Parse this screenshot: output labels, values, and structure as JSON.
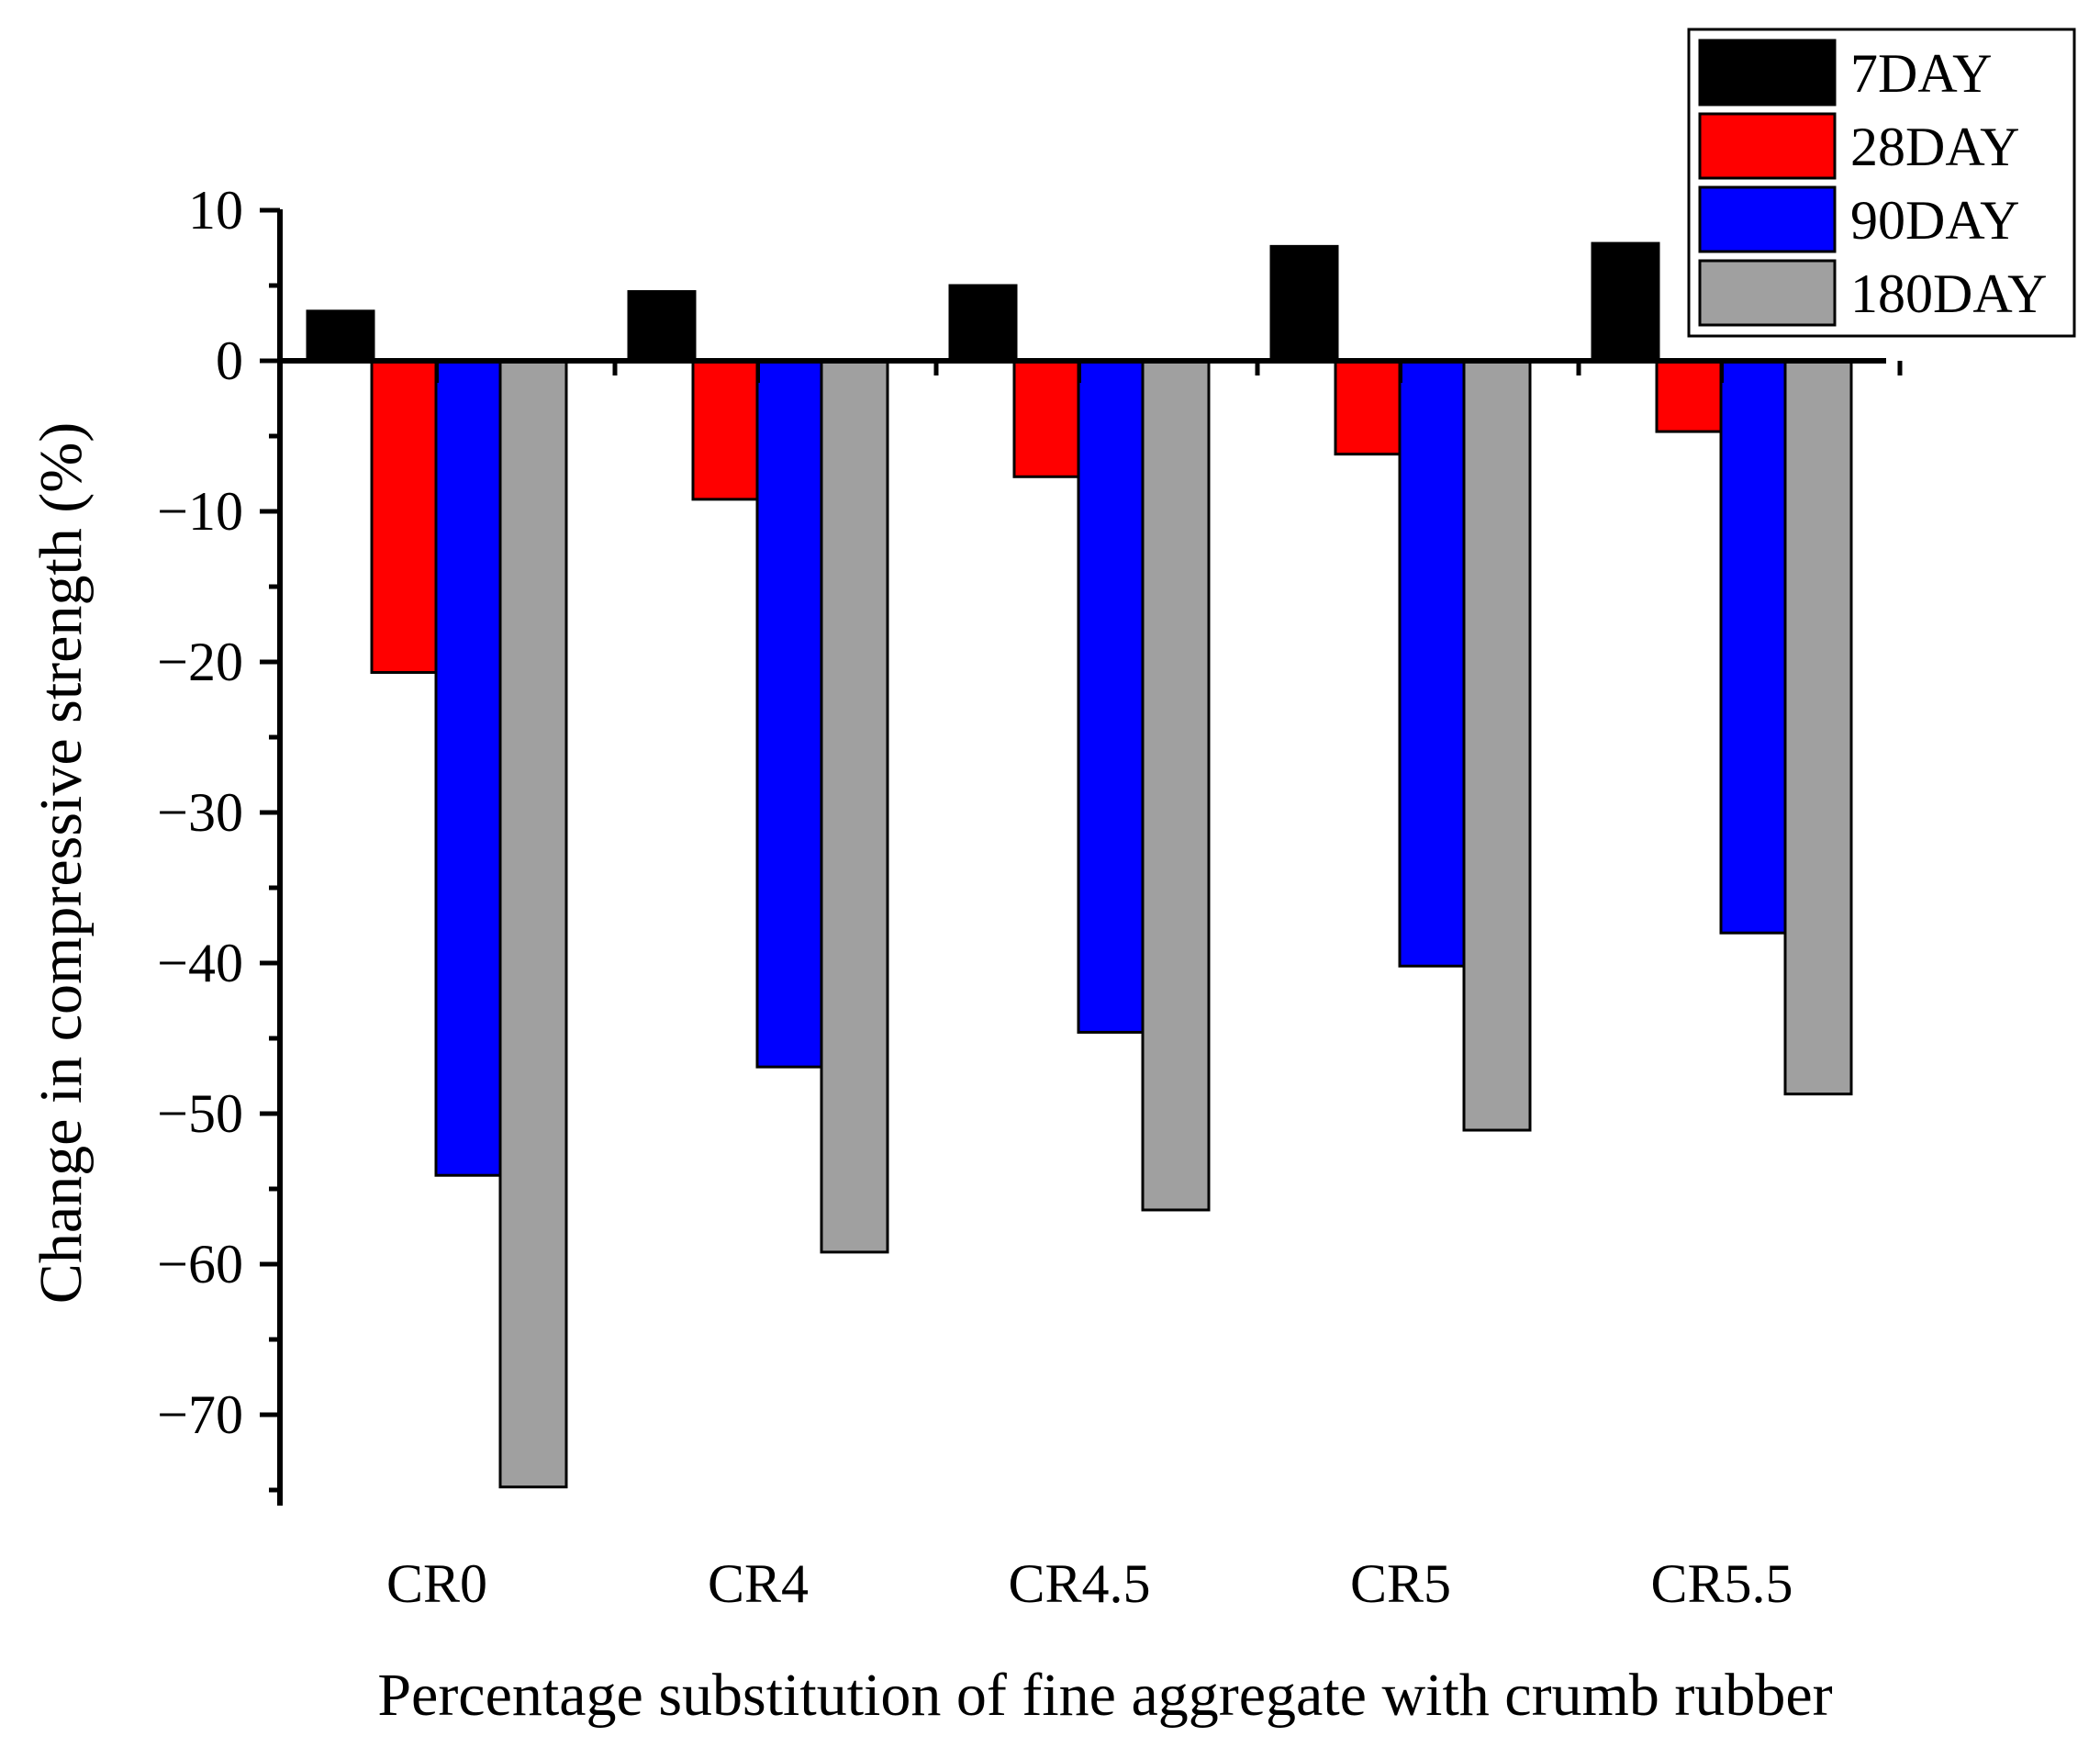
{
  "chart_data": {
    "type": "bar",
    "title": "",
    "xlabel": "Percentage substitution of fine aggregate with crumb rubber",
    "ylabel": "Change in compressive strength (%)",
    "ylim": [
      -76,
      10
    ],
    "y_ticks": [
      10,
      0,
      -10,
      -20,
      -30,
      -40,
      -50,
      -60,
      -70
    ],
    "y_tick_labels": [
      "10",
      "0",
      "−10",
      "−20",
      "−30",
      "−40",
      "−50",
      "−60",
      "−70"
    ],
    "categories": [
      "CR0",
      "CR4",
      "CR4.5",
      "CR5",
      "CR5.5"
    ],
    "series": [
      {
        "name": "7DAY",
        "color": "#000000",
        "values": [
          3.3,
          4.6,
          5.0,
          7.6,
          7.8
        ]
      },
      {
        "name": "28DAY",
        "color": "#ff0000",
        "values": [
          -20.7,
          -9.2,
          -7.7,
          -6.2,
          -4.7
        ]
      },
      {
        "name": "90DAY",
        "color": "#0000ff",
        "values": [
          -54.1,
          -46.9,
          -44.6,
          -40.2,
          -38.0
        ]
      },
      {
        "name": "180DAY",
        "color": "#a0a0a0",
        "values": [
          -74.8,
          -59.2,
          -56.4,
          -51.1,
          -48.7
        ]
      }
    ],
    "grid": false,
    "legend_position": "top-right"
  }
}
